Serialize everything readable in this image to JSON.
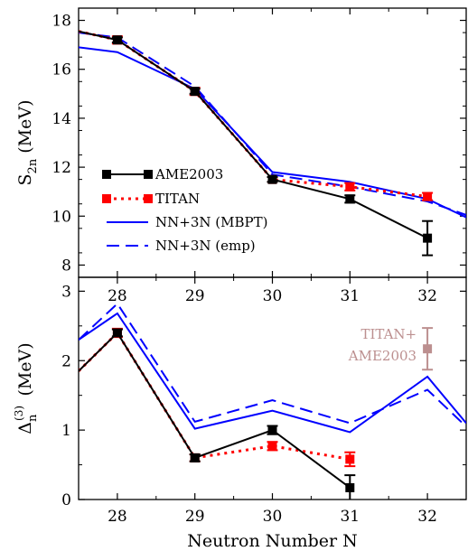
{
  "chart_data": [
    {
      "type": "line",
      "ylabel": "S",
      "ylabel_sub": "2n",
      "ylabel_unit": "(MeV)",
      "xlim": [
        27.5,
        32.5
      ],
      "ylim": [
        7.5,
        18.5
      ],
      "yticks": [
        8,
        10,
        12,
        14,
        16,
        18
      ],
      "top_xticks": [
        28,
        29,
        30,
        31,
        32
      ],
      "legend_position": "lower-left",
      "series": [
        {
          "name": "AME2003",
          "style": "solid-square",
          "color": "#000000",
          "x": [
            27.5,
            28,
            29,
            30,
            31,
            32
          ],
          "y": [
            17.55,
            17.2,
            15.1,
            11.5,
            10.7,
            9.1
          ],
          "err": [
            null,
            0.1,
            0.1,
            0.1,
            0.15,
            0.7
          ]
        },
        {
          "name": "TITAN",
          "style": "dotted-square",
          "color": "#ff0000",
          "x": [
            27.5,
            28,
            29,
            30,
            31,
            32
          ],
          "y": [
            17.55,
            17.2,
            15.1,
            11.5,
            11.2,
            10.8
          ],
          "err": [
            null,
            0.15,
            0.15,
            0.1,
            0.15,
            0.15
          ]
        },
        {
          "name": "NN+3N (MBPT)",
          "style": "solid",
          "color": "#0000ff",
          "x": [
            27.5,
            28,
            29,
            30,
            31,
            32,
            32.5
          ],
          "y": [
            16.9,
            16.7,
            15.2,
            11.8,
            11.4,
            10.7,
            9.95
          ]
        },
        {
          "name": "NN+3N (emp)",
          "style": "dashed",
          "color": "#0000ff",
          "x": [
            27.5,
            28,
            29,
            30,
            31,
            32,
            32.5
          ],
          "y": [
            17.5,
            17.3,
            15.3,
            11.7,
            11.2,
            10.6,
            10.05
          ]
        }
      ]
    },
    {
      "type": "line",
      "xlabel": "Neutron Number N",
      "ylabel": "Δ",
      "ylabel_sub": "n",
      "ylabel_sup": "(3)",
      "ylabel_unit": "(MeV)",
      "xlim": [
        27.5,
        32.5
      ],
      "ylim": [
        0,
        3.2
      ],
      "yticks": [
        0,
        1,
        2,
        3
      ],
      "xticks": [
        28,
        29,
        30,
        31,
        32
      ],
      "annotation": {
        "lines": [
          "TITAN+",
          "AME2003"
        ],
        "color": "#bc8f8f",
        "x": 32,
        "y": 2.17,
        "err": 0.3
      },
      "series": [
        {
          "name": "AME2003",
          "style": "solid-square",
          "color": "#000000",
          "x": [
            27.5,
            28,
            29,
            30,
            31
          ],
          "y": [
            1.85,
            2.4,
            0.6,
            1.0,
            0.17
          ],
          "err": [
            null,
            0.05,
            0.05,
            0.06,
            0.18
          ]
        },
        {
          "name": "TITAN",
          "style": "dotted-square",
          "color": "#ff0000",
          "x": [
            27.5,
            28,
            29,
            30,
            31
          ],
          "y": [
            1.85,
            2.4,
            0.6,
            0.77,
            0.58
          ],
          "err": [
            null,
            0.06,
            0.05,
            0.06,
            0.1
          ]
        },
        {
          "name": "NN+3N (MBPT)",
          "style": "solid",
          "color": "#0000ff",
          "x": [
            27.5,
            28,
            29,
            30,
            31,
            32,
            32.5
          ],
          "y": [
            2.3,
            2.68,
            1.02,
            1.28,
            0.97,
            1.77,
            1.1
          ]
        },
        {
          "name": "NN+3N (emp)",
          "style": "dashed",
          "color": "#0000ff",
          "x": [
            27.5,
            28,
            29,
            30,
            31,
            32,
            32.5
          ],
          "y": [
            2.3,
            2.82,
            1.12,
            1.43,
            1.1,
            1.58,
            1.05
          ]
        }
      ]
    }
  ]
}
